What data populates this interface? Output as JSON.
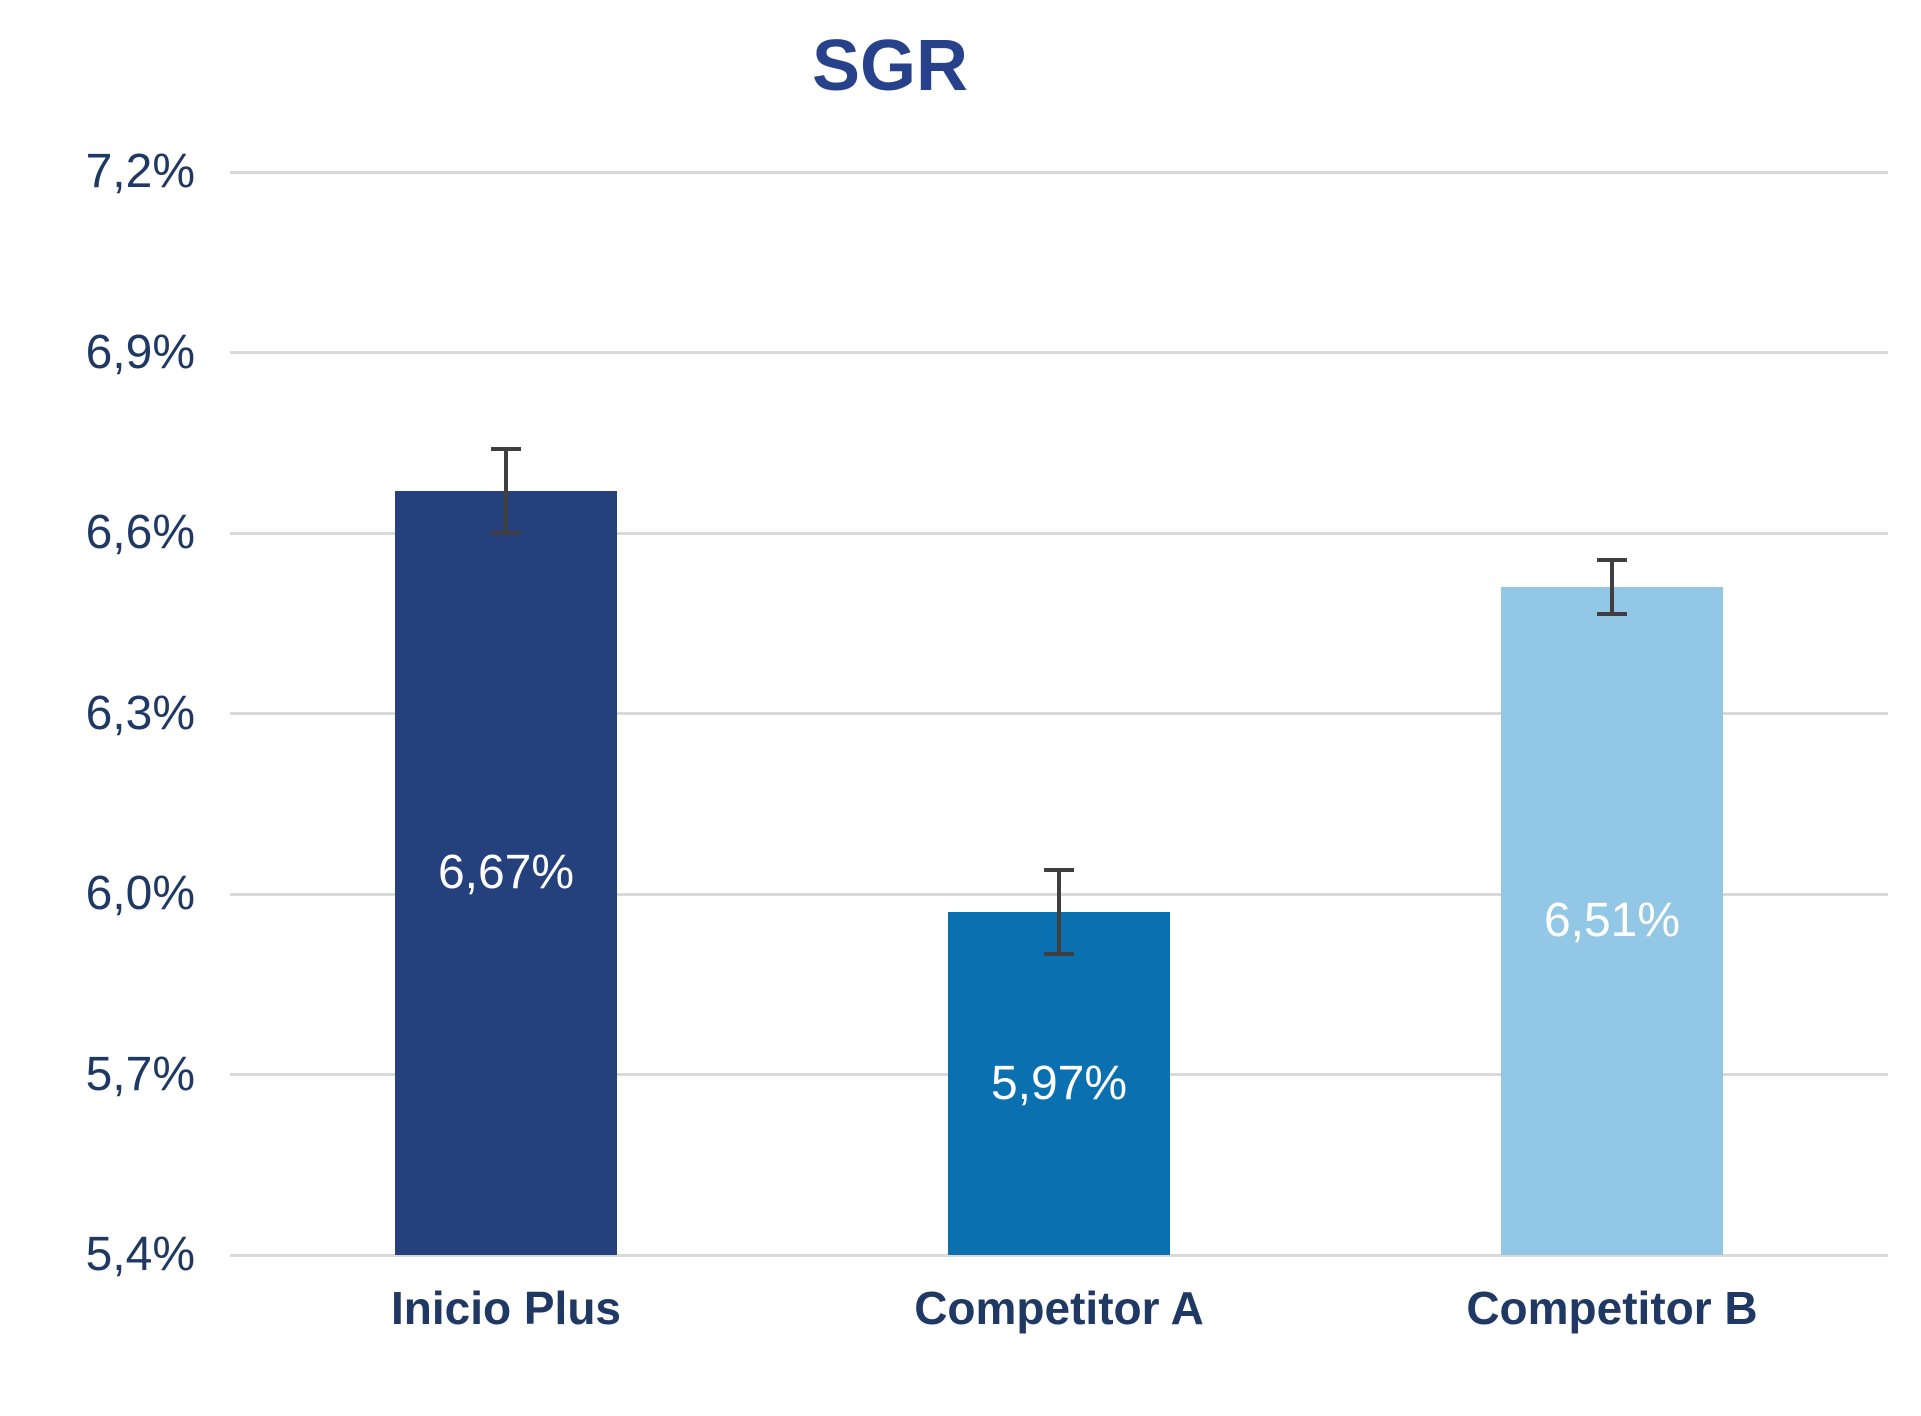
{
  "chart_data": {
    "type": "bar",
    "title": "SGR",
    "categories": [
      "Inicio Plus",
      "Competitor A",
      "Competitor B"
    ],
    "values": [
      6.67,
      5.97,
      6.51
    ],
    "value_labels": [
      "6,67%",
      "5,97%",
      "6,51%"
    ],
    "error_bars": [
      0.07,
      0.07,
      0.045
    ],
    "bar_colors": [
      "#24417D",
      "#0B70B0",
      "#92C8E6"
    ],
    "y_ticks": [
      7.2,
      6.9,
      6.6,
      6.3,
      6.0,
      5.7,
      5.4
    ],
    "y_tick_labels": [
      "7,2%",
      "6,9%",
      "6,6%",
      "6,3%",
      "6,0%",
      "5,7%",
      "5,4%"
    ],
    "ylim": [
      5.4,
      7.2
    ],
    "xlabel": "",
    "ylabel": "",
    "grid": true,
    "legend": false,
    "colors": {
      "title_text": "#27418B",
      "axis_text": "#1F3864",
      "value_label_text": "#FFFFFF",
      "gridline": "#D9D9D9",
      "error_bar": "#3F3F3F",
      "background": "#FFFFFF"
    }
  }
}
